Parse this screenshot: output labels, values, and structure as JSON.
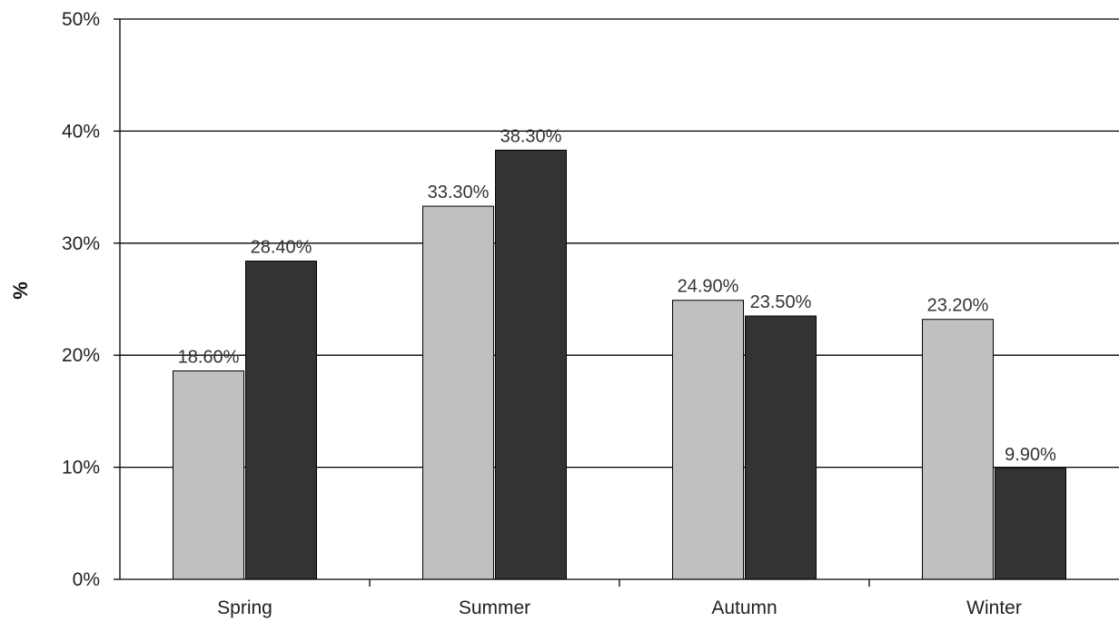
{
  "chart_data": {
    "type": "bar",
    "categories": [
      "Spring",
      "Summer",
      "Autumn",
      "Winter"
    ],
    "series": [
      {
        "values": [
          18.6,
          33.3,
          24.9,
          23.2
        ],
        "labels": [
          "18.60%",
          "33.30%",
          "24.90%",
          "23.20%"
        ],
        "color": "#c0c0c0"
      },
      {
        "values": [
          28.4,
          38.3,
          23.5,
          9.9
        ],
        "labels": [
          "28.40%",
          "38.30%",
          "23.50%",
          "9.90%"
        ],
        "color": "#333333"
      }
    ],
    "ylabel": "%",
    "ylim": [
      0,
      50
    ],
    "yticks": [
      {
        "value": 0,
        "label": "0%"
      },
      {
        "value": 10,
        "label": "10%"
      },
      {
        "value": 20,
        "label": "20%"
      },
      {
        "value": 30,
        "label": "30%"
      },
      {
        "value": 40,
        "label": "40%"
      },
      {
        "value": 50,
        "label": "50%"
      }
    ],
    "grid": true,
    "legend": "none"
  }
}
